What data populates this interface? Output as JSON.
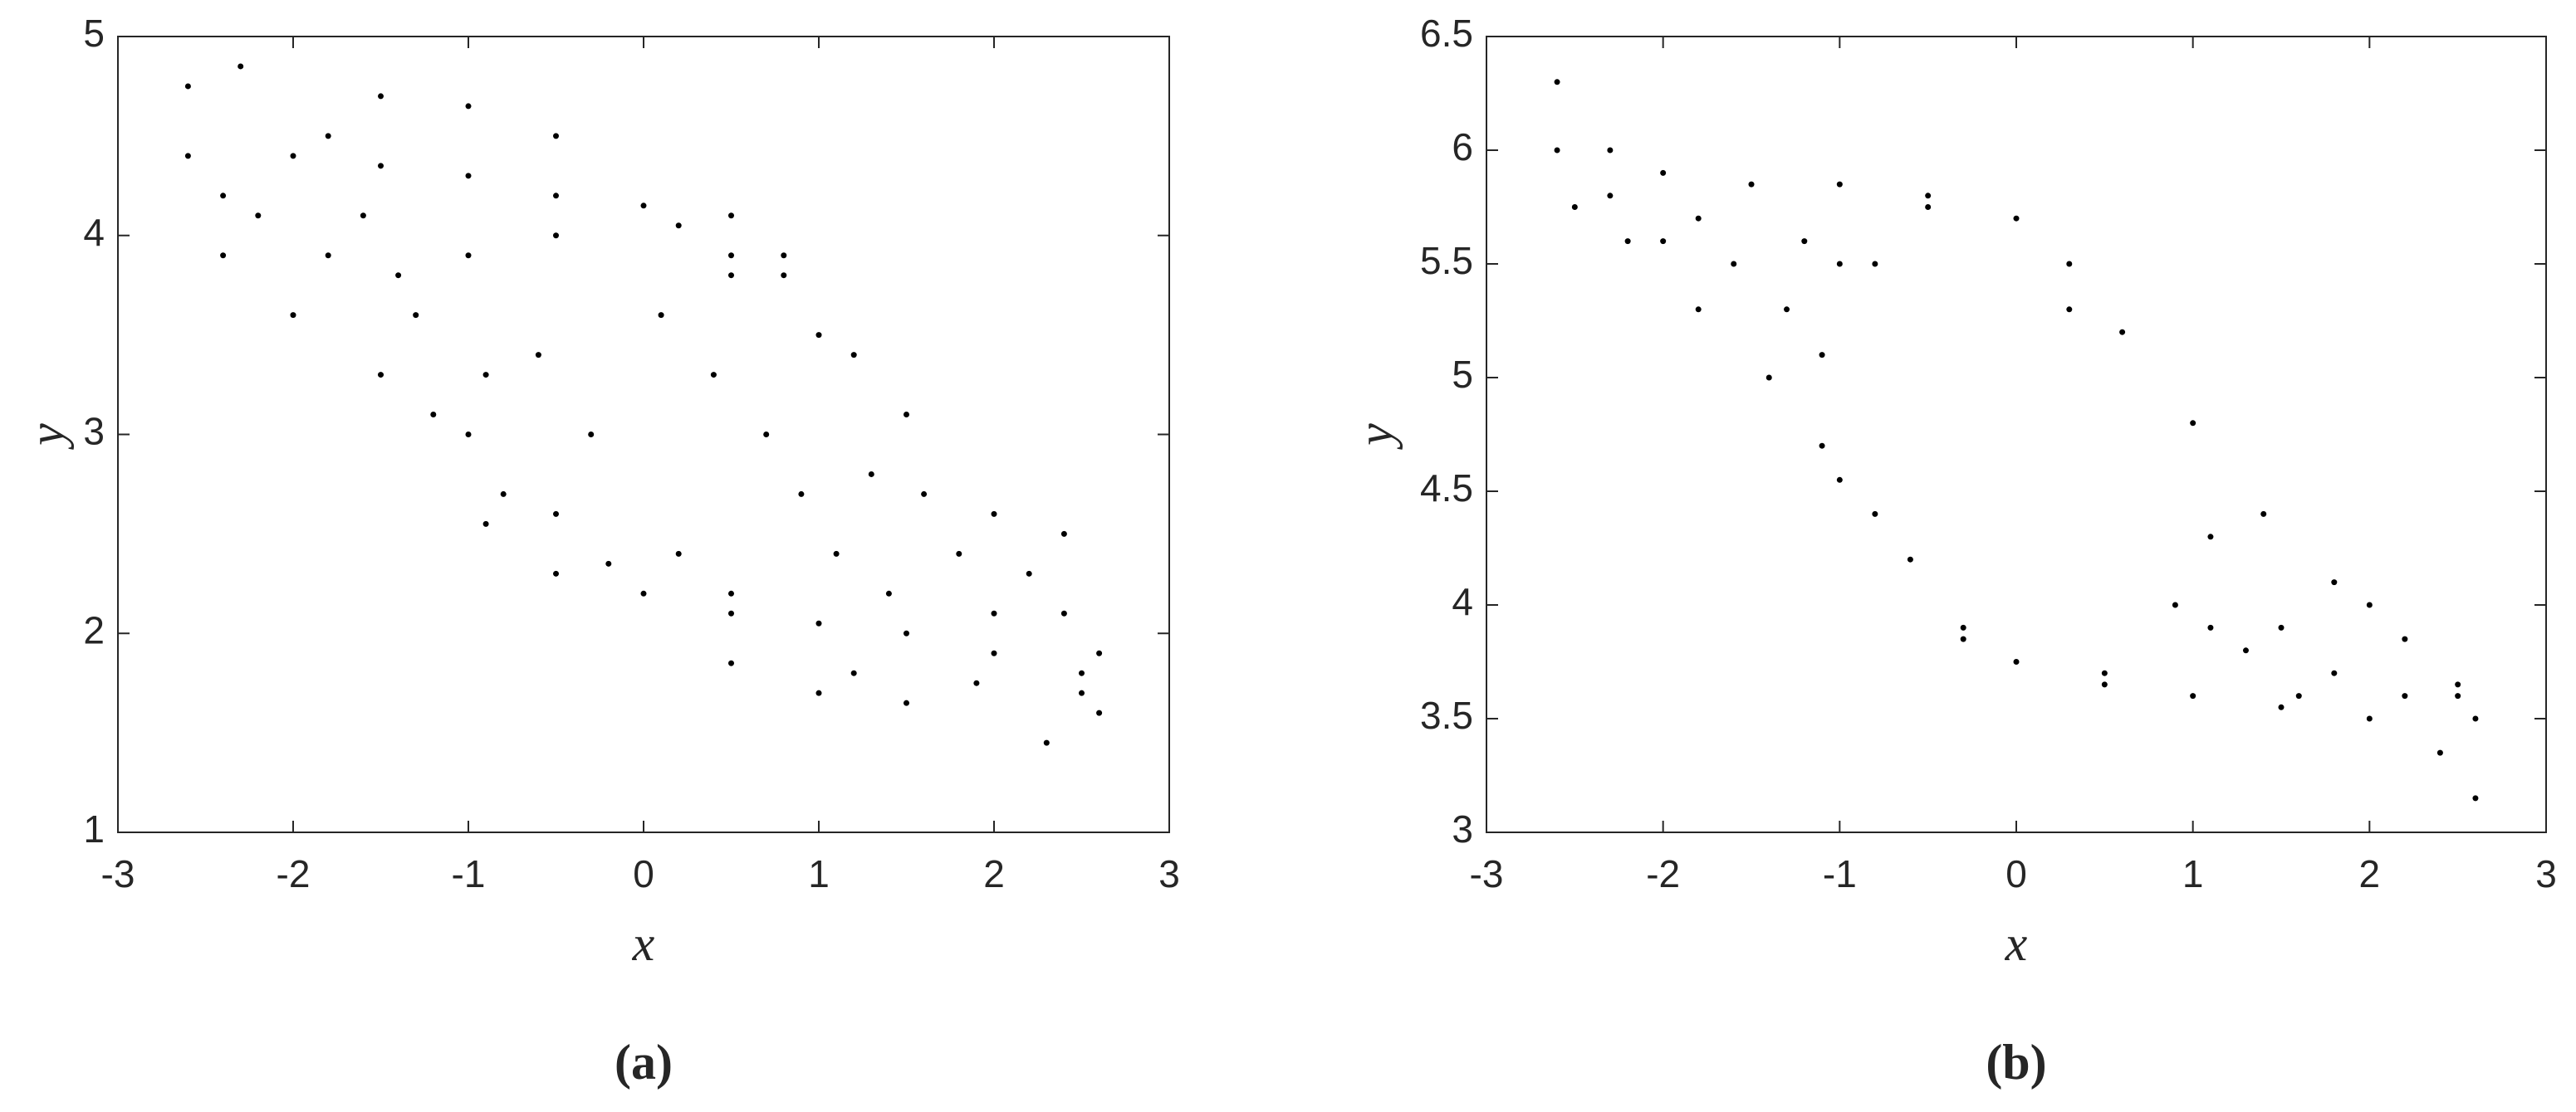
{
  "chart_data": [
    {
      "type": "scatter",
      "caption": "(a)",
      "xlabel": "x",
      "ylabel": "y",
      "color": "#000000",
      "xlim": [
        -3,
        3
      ],
      "ylim": [
        1,
        5
      ],
      "xticks": [
        -3,
        -2,
        -1,
        0,
        1,
        2,
        3
      ],
      "yticks": [
        1,
        2,
        3,
        4,
        5
      ],
      "x": [
        -2.6,
        -2.3,
        -2.0,
        -1.5,
        -1.0,
        -0.5,
        0.0,
        0.5,
        1.0,
        1.5,
        2.0,
        2.4,
        2.6,
        2.6,
        2.3,
        -2.6,
        -2.4,
        -2.0,
        -1.5,
        -1.0,
        -0.5,
        0.0,
        0.5,
        1.0,
        1.5,
        2.0,
        2.5,
        -1.5,
        -1.0,
        -0.5,
        0.5,
        0.8,
        0.5,
        -0.9,
        -0.5,
        0.5,
        1.0,
        1.5,
        1.9,
        -1.3,
        -1.2,
        -0.8,
        -0.2,
        0.5,
        1.1,
        1.3,
        1.2,
        0.8,
        0.2,
        -0.5,
        -1.0,
        -0.6,
        -0.3,
        0.4,
        0.7,
        0.9,
        -0.9,
        0.1,
        -2.2,
        -1.8,
        -1.4,
        2.2,
        1.8,
        1.6,
        2.4,
        2.0,
        1.2,
        -1.8,
        -2.4,
        2.5,
        0.2,
        -1.6,
        1.4
      ],
      "y": [
        4.75,
        4.85,
        4.4,
        4.35,
        4.3,
        4.2,
        4.15,
        3.9,
        3.5,
        3.1,
        2.6,
        2.1,
        1.9,
        1.6,
        1.45,
        4.4,
        3.9,
        3.6,
        3.3,
        3.0,
        2.6,
        2.2,
        2.1,
        2.05,
        2.0,
        1.9,
        1.7,
        4.7,
        4.65,
        4.5,
        4.1,
        3.8,
        3.8,
        2.55,
        2.3,
        1.85,
        1.7,
        1.65,
        1.75,
        3.6,
        3.1,
        2.7,
        2.35,
        2.2,
        2.4,
        2.8,
        3.4,
        3.9,
        4.05,
        4.0,
        3.9,
        3.4,
        3.0,
        3.3,
        3.0,
        2.7,
        3.3,
        3.6,
        4.1,
        3.9,
        3.8,
        2.3,
        2.4,
        2.7,
        2.5,
        2.1,
        1.8,
        4.5,
        4.2,
        1.8,
        2.4,
        4.1,
        2.2
      ]
    },
    {
      "type": "scatter",
      "caption": "(b)",
      "xlabel": "x",
      "ylabel": "y",
      "color": "#000000",
      "xlim": [
        -3,
        3
      ],
      "ylim": [
        3,
        6.5
      ],
      "xticks": [
        -3,
        -2,
        -1,
        0,
        1,
        2,
        3
      ],
      "yticks": [
        3,
        3.5,
        4,
        4.5,
        5,
        5.5,
        6,
        6.5
      ],
      "x": [
        -2.6,
        -2.6,
        -2.5,
        -2.2,
        -1.8,
        -1.4,
        -1.0,
        -0.6,
        -0.3,
        0.0,
        0.5,
        1.0,
        1.5,
        2.0,
        2.4,
        2.6,
        2.6,
        2.5,
        -2.3,
        -2.0,
        -1.5,
        -1.0,
        -0.5,
        0.0,
        0.3,
        0.6,
        1.0,
        1.4,
        1.8,
        2.2,
        2.5,
        -1.1,
        -1.0,
        -0.5,
        0.3,
        1.1,
        1.1,
        0.5,
        -0.3,
        -0.8,
        -1.1,
        -2.0,
        -1.6,
        -1.3,
        -2.3,
        -1.8,
        1.5,
        1.8,
        2.2,
        1.3,
        2.0,
        -0.8,
        1.6,
        0.9,
        -1.2
      ],
      "y": [
        6.3,
        6.0,
        5.75,
        5.6,
        5.3,
        5.0,
        4.55,
        4.2,
        3.9,
        3.75,
        3.65,
        3.6,
        3.55,
        3.5,
        3.35,
        3.15,
        3.5,
        3.6,
        6.0,
        5.9,
        5.85,
        5.85,
        5.8,
        5.7,
        5.5,
        5.2,
        4.8,
        4.4,
        4.1,
        3.85,
        3.65,
        5.1,
        5.5,
        5.75,
        5.3,
        4.3,
        3.9,
        3.7,
        3.85,
        4.4,
        4.7,
        5.6,
        5.5,
        5.3,
        5.8,
        5.7,
        3.9,
        3.7,
        3.6,
        3.8,
        4.0,
        5.5,
        3.6,
        4.0,
        5.6
      ]
    }
  ]
}
